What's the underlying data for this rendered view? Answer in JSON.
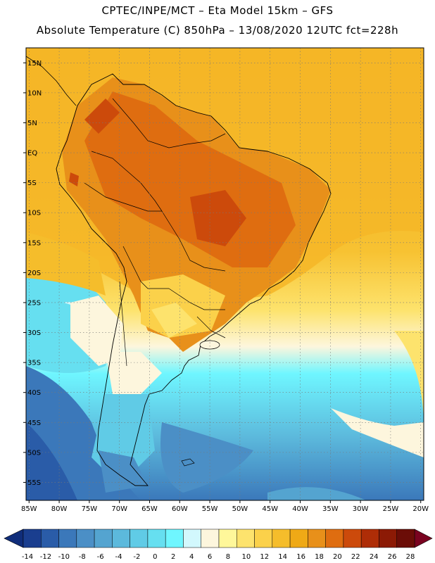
{
  "header": {
    "line1": "CPTEC/INPE/MCT –  Eta Model 15km – GFS",
    "line2": "Absolute Temperature (C) 850hPa – 13/08/2020 12UTC fct=228h"
  },
  "map": {
    "lat_labels": [
      "15N",
      "10N",
      "5N",
      "EQ",
      "5S",
      "10S",
      "15S",
      "20S",
      "25S",
      "30S",
      "35S",
      "40S",
      "45S",
      "50S",
      "55S"
    ],
    "lon_labels": [
      "85W",
      "80W",
      "75W",
      "70W",
      "65W",
      "60W",
      "55W",
      "50W",
      "45W",
      "40W",
      "35W",
      "30W",
      "25W",
      "20W"
    ],
    "lat_range": [
      17.5,
      -58
    ],
    "lon_range": [
      -85.5,
      -19.5
    ]
  },
  "colorbar": {
    "ticks": [
      "-14",
      "-12",
      "-10",
      "-8",
      "-6",
      "-4",
      "-2",
      "0",
      "2",
      "4",
      "6",
      "8",
      "10",
      "12",
      "14",
      "16",
      "18",
      "20",
      "22",
      "24",
      "26",
      "28"
    ],
    "colors": [
      "#1a3e8f",
      "#2a5ca8",
      "#3b78ba",
      "#4b8fc6",
      "#54a4d0",
      "#5cb9dc",
      "#60cbe6",
      "#66dff0",
      "#6ff6ff",
      "#d2f8fd",
      "#fdf6dd",
      "#fff79a",
      "#fde36d",
      "#fbd14a",
      "#f5bd2b",
      "#efa916",
      "#e8901a",
      "#df6d10",
      "#cc4a0b",
      "#ae2d07",
      "#8c1a05",
      "#6b0d07"
    ],
    "under_color": "#102d7a",
    "over_color": "#7a0320"
  }
}
